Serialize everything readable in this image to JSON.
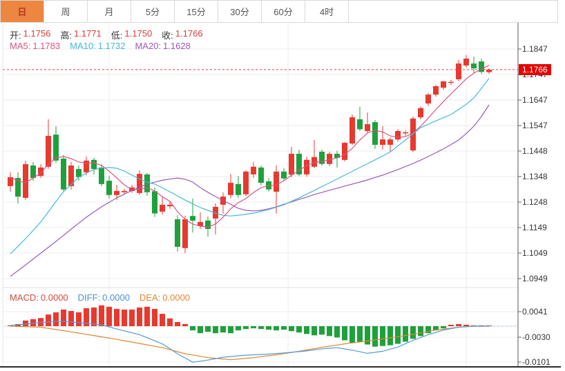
{
  "tab_bar": {
    "items": [
      {
        "name": "tab-day",
        "label": "日",
        "active": true
      },
      {
        "name": "tab-week",
        "label": "周",
        "active": false
      },
      {
        "name": "tab-month",
        "label": "月",
        "active": false
      },
      {
        "name": "tab-5min",
        "label": "5分",
        "active": false
      },
      {
        "name": "tab-15min",
        "label": "15分",
        "active": false
      },
      {
        "name": "tab-30min",
        "label": "30分",
        "active": false
      },
      {
        "name": "tab-60min",
        "label": "60分",
        "active": false
      },
      {
        "name": "tab-4hour",
        "label": "4时",
        "active": false
      }
    ]
  },
  "ohlc_legend": {
    "open_label": "开:",
    "open": "1.1756",
    "high_label": "高:",
    "high": "1.1771",
    "low_label": "低:",
    "low": "1.1750",
    "close_label": "收:",
    "close": "1.1766"
  },
  "ma_legend": {
    "ma5_label": "MA5:",
    "ma5": "1.1783",
    "ma10_label": "MA10:",
    "ma10": "1.1732",
    "ma20_label": "MA20:",
    "ma20": "1.1628"
  },
  "macd_legend": {
    "macd_label": "MACD:",
    "macd": "0.0000",
    "diff_label": "DIFF:",
    "diff": "0.0000",
    "dea_label": "DEA:",
    "dea": "0.0000"
  },
  "price_tag": {
    "value": "1.1766"
  },
  "colors": {
    "up": "#e8392f",
    "down": "#1ea13c",
    "ma5": "#d95580",
    "ma10": "#45b8d8",
    "ma20": "#9b59b6",
    "diff_line": "#4f9bd9",
    "dea_line": "#e0862e",
    "value_red": "#e03b3b",
    "tag_bg": "#e60000",
    "dotted_line": "#e63c3c",
    "active_tab_bg": "#ed8640",
    "grid": "#ececec"
  },
  "chart_data": {
    "type": "candlestick",
    "title": "",
    "price_axis_ticks": [
      "1.1847",
      "1.1747",
      "1.1647",
      "1.1547",
      "1.1448",
      "1.1348",
      "1.1248",
      "1.1149",
      "1.1049",
      "1.0949"
    ],
    "macd_axis_ticks": [
      "0.0041",
      "-0.0030",
      "-0.0101"
    ],
    "y_range": [
      1.0949,
      1.1847
    ],
    "macd_range": [
      -0.0101,
      0.0041
    ],
    "last_price": 1.1766,
    "legend_values": {
      "open": 1.1756,
      "high": 1.1771,
      "low": 1.175,
      "close": 1.1766,
      "ma5": 1.1783,
      "ma10": 1.1732,
      "ma20": 1.1628,
      "macd": 0.0,
      "diff": 0.0,
      "dea": 0.0
    },
    "candles": [
      [
        1.1309,
        1.1363,
        1.1287,
        1.1344
      ],
      [
        1.1341,
        1.1363,
        1.1241,
        1.1268
      ],
      [
        1.1263,
        1.1409,
        1.1255,
        1.1395
      ],
      [
        1.139,
        1.1404,
        1.133,
        1.1341
      ],
      [
        1.1349,
        1.1395,
        1.1341,
        1.1382
      ],
      [
        1.1385,
        1.1571,
        1.1377,
        1.1506
      ],
      [
        1.1511,
        1.1544,
        1.14,
        1.1409
      ],
      [
        1.1417,
        1.1431,
        1.1287,
        1.1296
      ],
      [
        1.1309,
        1.1404,
        1.1296,
        1.139
      ],
      [
        1.1376,
        1.139,
        1.133,
        1.1344
      ],
      [
        1.1363,
        1.1425,
        1.1352,
        1.1409
      ],
      [
        1.1412,
        1.142,
        1.1355,
        1.1376
      ],
      [
        1.1382,
        1.1395,
        1.1309,
        1.1317
      ],
      [
        1.133,
        1.1349,
        1.126,
        1.1274
      ],
      [
        1.1274,
        1.1314,
        1.1255,
        1.129
      ],
      [
        1.1285,
        1.1298,
        1.1279,
        1.129
      ],
      [
        1.129,
        1.1314,
        1.1282,
        1.1304
      ],
      [
        1.1282,
        1.1371,
        1.1276,
        1.1357
      ],
      [
        1.1355,
        1.136,
        1.1271,
        1.1285
      ],
      [
        1.1289,
        1.1304,
        1.1188,
        1.1202
      ],
      [
        1.1209,
        1.1268,
        1.1198,
        1.1236
      ],
      [
        1.123,
        1.1247,
        1.122,
        1.1236
      ],
      [
        1.1179,
        1.1195,
        1.1052,
        1.1071
      ],
      [
        1.1066,
        1.1193,
        1.1046,
        1.1179
      ],
      [
        1.1192,
        1.126,
        1.1127,
        1.1174
      ],
      [
        1.1152,
        1.1206,
        1.1141,
        1.1168
      ],
      [
        1.1174,
        1.119,
        1.1111,
        1.1141
      ],
      [
        1.1182,
        1.1241,
        1.112,
        1.1228
      ],
      [
        1.1236,
        1.1284,
        1.1201,
        1.1268
      ],
      [
        1.1274,
        1.1357,
        1.1261,
        1.1322
      ],
      [
        1.1317,
        1.1349,
        1.1263,
        1.1274
      ],
      [
        1.1277,
        1.1371,
        1.127,
        1.1366
      ],
      [
        1.1355,
        1.1404,
        1.1342,
        1.1385
      ],
      [
        1.1382,
        1.139,
        1.1312,
        1.1322
      ],
      [
        1.1328,
        1.1341,
        1.1288,
        1.1296
      ],
      [
        1.1287,
        1.139,
        1.1201,
        1.1366
      ],
      [
        1.1366,
        1.1379,
        1.133,
        1.1339
      ],
      [
        1.1354,
        1.1463,
        1.1344,
        1.1436
      ],
      [
        1.1436,
        1.1452,
        1.1348,
        1.1355
      ],
      [
        1.1355,
        1.1425,
        1.1346,
        1.1412
      ],
      [
        1.1385,
        1.149,
        1.138,
        1.1423
      ],
      [
        1.1444,
        1.1452,
        1.139,
        1.1396
      ],
      [
        1.1396,
        1.1444,
        1.1388,
        1.1436
      ],
      [
        1.1436,
        1.1447,
        1.1382,
        1.142
      ],
      [
        1.1412,
        1.1482,
        1.1406,
        1.1479
      ],
      [
        1.1476,
        1.159,
        1.147,
        1.1579
      ],
      [
        1.1571,
        1.162,
        1.1525,
        1.1532
      ],
      [
        1.1525,
        1.1598,
        1.1517,
        1.1552
      ],
      [
        1.156,
        1.1568,
        1.1455,
        1.1471
      ],
      [
        1.1471,
        1.1544,
        1.1452,
        1.1492
      ],
      [
        1.1471,
        1.15,
        1.1444,
        1.1492
      ],
      [
        1.1492,
        1.1533,
        1.1484,
        1.1525
      ],
      [
        1.1517,
        1.1528,
        1.1506,
        1.152
      ],
      [
        1.1449,
        1.1582,
        1.1442,
        1.1574
      ],
      [
        1.1579,
        1.1622,
        1.1571,
        1.1615
      ],
      [
        1.1633,
        1.1674,
        1.1623,
        1.1668
      ],
      [
        1.1668,
        1.1706,
        1.166,
        1.1701
      ],
      [
        1.1695,
        1.1722,
        1.1687,
        1.172
      ],
      [
        1.1714,
        1.1726,
        1.1706,
        1.1718
      ],
      [
        1.1728,
        1.1804,
        1.172,
        1.179
      ],
      [
        1.1782,
        1.1823,
        1.1774,
        1.1809
      ],
      [
        1.179,
        1.1817,
        1.1751,
        1.1771
      ],
      [
        1.1798,
        1.1809,
        1.1749,
        1.1757
      ],
      [
        1.1756,
        1.1771,
        1.175,
        1.1766
      ]
    ],
    "ma5_points": [
      [
        0,
        1.1344
      ],
      [
        1,
        1.133
      ],
      [
        2,
        1.1322
      ],
      [
        3,
        1.1341
      ],
      [
        4,
        1.136
      ],
      [
        5,
        1.1395
      ],
      [
        6,
        1.142
      ],
      [
        7,
        1.1425
      ],
      [
        8,
        1.1417
      ],
      [
        9,
        1.1404
      ],
      [
        10,
        1.1398
      ],
      [
        11,
        1.1401
      ],
      [
        12,
        1.139
      ],
      [
        13,
        1.1368
      ],
      [
        14,
        1.1341
      ],
      [
        15,
        1.1314
      ],
      [
        16,
        1.1295
      ],
      [
        17,
        1.1298
      ],
      [
        18,
        1.1303
      ],
      [
        19,
        1.129
      ],
      [
        20,
        1.1268
      ],
      [
        21,
        1.1249
      ],
      [
        22,
        1.1209
      ],
      [
        23,
        1.1179
      ],
      [
        24,
        1.116
      ],
      [
        25,
        1.1152
      ],
      [
        26,
        1.1149
      ],
      [
        27,
        1.116
      ],
      [
        28,
        1.1187
      ],
      [
        29,
        1.122
      ],
      [
        30,
        1.1244
      ],
      [
        31,
        1.126
      ],
      [
        32,
        1.1284
      ],
      [
        33,
        1.1303
      ],
      [
        34,
        1.1311
      ],
      [
        35,
        1.1314
      ],
      [
        36,
        1.133
      ],
      [
        37,
        1.1352
      ],
      [
        38,
        1.1371
      ],
      [
        39,
        1.139
      ],
      [
        40,
        1.1401
      ],
      [
        41,
        1.1406
      ],
      [
        42,
        1.1412
      ],
      [
        43,
        1.142
      ],
      [
        44,
        1.1433
      ],
      [
        45,
        1.1457
      ],
      [
        46,
        1.149
      ],
      [
        47,
        1.1517
      ],
      [
        48,
        1.1528
      ],
      [
        49,
        1.1522
      ],
      [
        50,
        1.1506
      ],
      [
        51,
        1.15
      ],
      [
        52,
        1.1503
      ],
      [
        53,
        1.1517
      ],
      [
        54,
        1.1544
      ],
      [
        55,
        1.1576
      ],
      [
        56,
        1.1609
      ],
      [
        57,
        1.1641
      ],
      [
        58,
        1.1671
      ],
      [
        59,
        1.17
      ],
      [
        60,
        1.173
      ],
      [
        61,
        1.1752
      ],
      [
        62,
        1.1768
      ],
      [
        63,
        1.1783
      ]
    ],
    "ma10_points": [
      [
        0,
        1.1043
      ],
      [
        2,
        1.1103
      ],
      [
        4,
        1.1168
      ],
      [
        6,
        1.1249
      ],
      [
        7,
        1.1287
      ],
      [
        9,
        1.1344
      ],
      [
        10,
        1.136
      ],
      [
        11,
        1.1374
      ],
      [
        12,
        1.138
      ],
      [
        13,
        1.1382
      ],
      [
        14,
        1.1379
      ],
      [
        15,
        1.1368
      ],
      [
        16,
        1.1352
      ],
      [
        17,
        1.1337
      ],
      [
        18,
        1.1325
      ],
      [
        19,
        1.1317
      ],
      [
        21,
        1.1287
      ],
      [
        23,
        1.1254
      ],
      [
        25,
        1.1225
      ],
      [
        27,
        1.1203
      ],
      [
        28,
        1.1195
      ],
      [
        29,
        1.1192
      ],
      [
        30,
        1.1195
      ],
      [
        32,
        1.1203
      ],
      [
        34,
        1.1217
      ],
      [
        36,
        1.1236
      ],
      [
        38,
        1.1263
      ],
      [
        40,
        1.1292
      ],
      [
        42,
        1.1322
      ],
      [
        44,
        1.1352
      ],
      [
        46,
        1.1382
      ],
      [
        48,
        1.1412
      ],
      [
        50,
        1.1443
      ],
      [
        52,
        1.149
      ],
      [
        54,
        1.1538
      ],
      [
        56,
        1.1565
      ],
      [
        58,
        1.159
      ],
      [
        60,
        1.163
      ],
      [
        61,
        1.1655
      ],
      [
        62,
        1.1692
      ],
      [
        63,
        1.1732
      ]
    ],
    "ma20_points": [
      [
        0,
        1.0955
      ],
      [
        2,
        1.1
      ],
      [
        4,
        1.1046
      ],
      [
        6,
        1.1092
      ],
      [
        8,
        1.114
      ],
      [
        10,
        1.1187
      ],
      [
        12,
        1.1228
      ],
      [
        14,
        1.1263
      ],
      [
        16,
        1.1292
      ],
      [
        18,
        1.1317
      ],
      [
        20,
        1.1332
      ],
      [
        22,
        1.1341
      ],
      [
        23,
        1.1336
      ],
      [
        24,
        1.1325
      ],
      [
        25,
        1.1303
      ],
      [
        26,
        1.1285
      ],
      [
        27,
        1.1268
      ],
      [
        28,
        1.1252
      ],
      [
        29,
        1.1238
      ],
      [
        30,
        1.1222
      ],
      [
        31,
        1.1214
      ],
      [
        32,
        1.1212
      ],
      [
        33,
        1.1214
      ],
      [
        34,
        1.122
      ],
      [
        35,
        1.1228
      ],
      [
        36,
        1.1238
      ],
      [
        37,
        1.1247
      ],
      [
        38,
        1.1257
      ],
      [
        39,
        1.1266
      ],
      [
        40,
        1.1276
      ],
      [
        41,
        1.1284
      ],
      [
        42,
        1.1293
      ],
      [
        43,
        1.1301
      ],
      [
        44,
        1.1309
      ],
      [
        45,
        1.1317
      ],
      [
        46,
        1.1325
      ],
      [
        47,
        1.1333
      ],
      [
        48,
        1.1343
      ],
      [
        49,
        1.1352
      ],
      [
        50,
        1.1363
      ],
      [
        51,
        1.1374
      ],
      [
        52,
        1.1386
      ],
      [
        53,
        1.1398
      ],
      [
        54,
        1.1411
      ],
      [
        55,
        1.1425
      ],
      [
        56,
        1.144
      ],
      [
        57,
        1.1455
      ],
      [
        58,
        1.1472
      ],
      [
        59,
        1.149
      ],
      [
        60,
        1.1515
      ],
      [
        61,
        1.1544
      ],
      [
        62,
        1.1582
      ],
      [
        63,
        1.1628
      ]
    ],
    "macd_hist": [
      0.0002,
      0.0006,
      0.0016,
      0.002,
      0.0023,
      0.0033,
      0.0039,
      0.0047,
      0.0043,
      0.0039,
      0.0051,
      0.0053,
      0.0059,
      0.0055,
      0.0049,
      0.0047,
      0.0047,
      0.0053,
      0.0055,
      0.0049,
      0.0035,
      0.0022,
      0.0012,
      0.0006,
      -0.0012,
      -0.002,
      -0.0016,
      -0.002,
      -0.0018,
      -0.002,
      -0.0012,
      -0.0008,
      -0.0006,
      -0.0008,
      -0.001,
      -0.0012,
      -0.001,
      -0.0014,
      -0.0018,
      -0.0022,
      -0.0026,
      -0.0024,
      -0.0028,
      -0.0032,
      -0.004,
      -0.0048,
      -0.0044,
      -0.0052,
      -0.0058,
      -0.0056,
      -0.0054,
      -0.005,
      -0.0044,
      -0.0036,
      -0.0028,
      -0.002,
      -0.0012,
      -0.0006,
      0.0004,
      0.0006,
      0.0004,
      0.0002,
      0.0001,
      0.0
    ],
    "diff_points": [
      [
        0,
        0.0002
      ],
      [
        3,
        0.0008
      ],
      [
        6,
        0.0014
      ],
      [
        8,
        0.0012
      ],
      [
        12,
        0.0004
      ],
      [
        14,
        -0.0008
      ],
      [
        17,
        -0.0024
      ],
      [
        20,
        -0.005
      ],
      [
        22,
        -0.0078
      ],
      [
        24,
        -0.0102
      ],
      [
        26,
        -0.0096
      ],
      [
        28,
        -0.0088
      ],
      [
        31,
        -0.0082
      ],
      [
        34,
        -0.0079
      ],
      [
        37,
        -0.0074
      ],
      [
        39,
        -0.007
      ],
      [
        41,
        -0.0064
      ],
      [
        43,
        -0.0061
      ],
      [
        45,
        -0.0068
      ],
      [
        47,
        -0.0077
      ],
      [
        49,
        -0.0071
      ],
      [
        51,
        -0.0059
      ],
      [
        53,
        -0.004
      ],
      [
        55,
        -0.0024
      ],
      [
        57,
        -0.0011
      ],
      [
        59,
        -0.0003
      ],
      [
        61,
        0.0
      ],
      [
        63,
        0.0
      ]
    ],
    "dea_points": [
      [
        0,
        0.0
      ],
      [
        4,
        -0.0003
      ],
      [
        8,
        -0.0016
      ],
      [
        12,
        -0.003
      ],
      [
        16,
        -0.0045
      ],
      [
        20,
        -0.0061
      ],
      [
        23,
        -0.0078
      ],
      [
        26,
        -0.0089
      ],
      [
        29,
        -0.0095
      ],
      [
        32,
        -0.0089
      ],
      [
        35,
        -0.0081
      ],
      [
        38,
        -0.0071
      ],
      [
        41,
        -0.006
      ],
      [
        44,
        -0.005
      ],
      [
        47,
        -0.0042
      ],
      [
        50,
        -0.0033
      ],
      [
        53,
        -0.0023
      ],
      [
        56,
        -0.0011
      ],
      [
        59,
        -0.0003
      ],
      [
        61,
        0.0
      ],
      [
        63,
        0.0
      ]
    ]
  }
}
